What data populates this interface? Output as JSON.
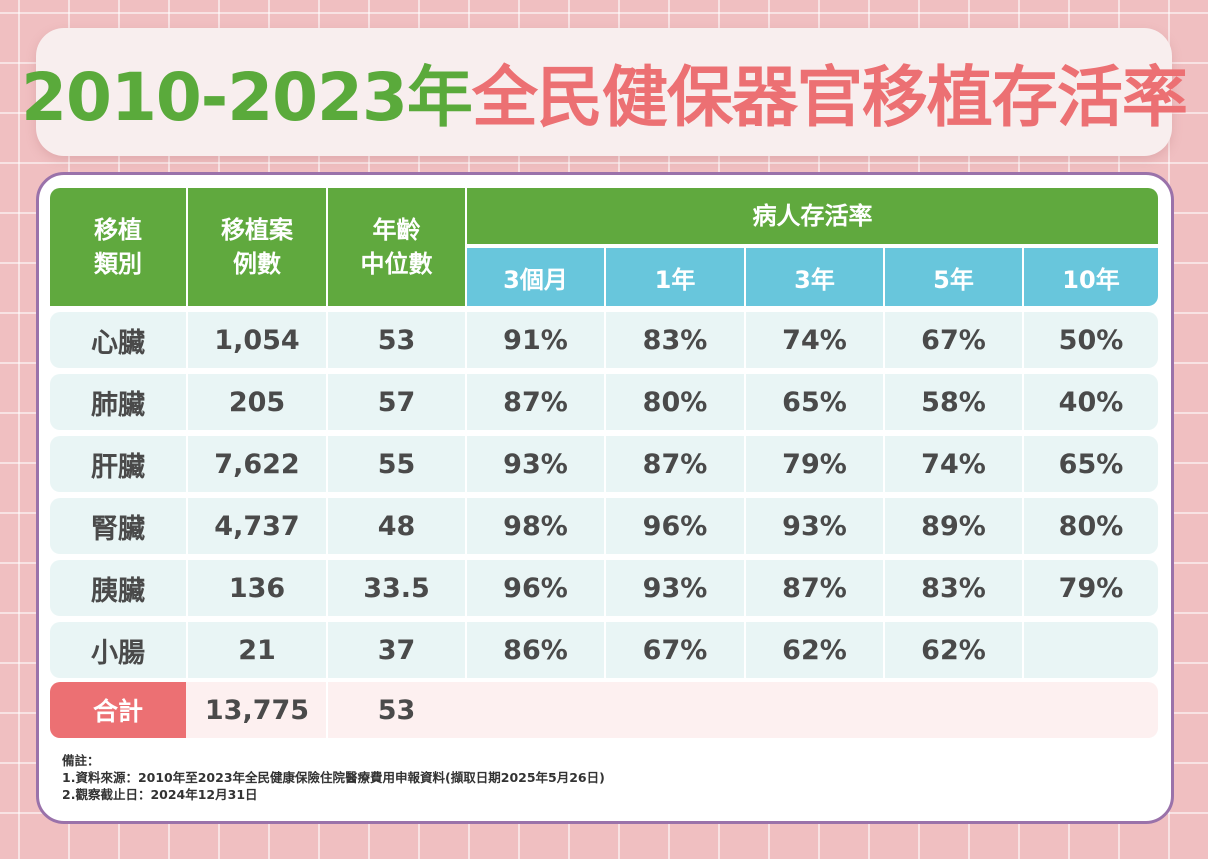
{
  "title": {
    "part1": "2010-2023年",
    "part2": "全民健保器官移植存活率"
  },
  "headers": {
    "type": "移植\n類別",
    "cases": "移植案\n例數",
    "age": "年齡\n中位數",
    "survival_group": "病人存活率",
    "periods": [
      "3個月",
      "1年",
      "3年",
      "5年",
      "10年"
    ]
  },
  "rows": [
    {
      "organ": "心臟",
      "cases": "1,054",
      "age": "53",
      "rates": [
        "91%",
        "83%",
        "74%",
        "67%",
        "50%"
      ]
    },
    {
      "organ": "肺臟",
      "cases": "205",
      "age": "57",
      "rates": [
        "87%",
        "80%",
        "65%",
        "58%",
        "40%"
      ]
    },
    {
      "organ": "肝臟",
      "cases": "7,622",
      "age": "55",
      "rates": [
        "93%",
        "87%",
        "79%",
        "74%",
        "65%"
      ]
    },
    {
      "organ": "腎臟",
      "cases": "4,737",
      "age": "48",
      "rates": [
        "98%",
        "96%",
        "93%",
        "89%",
        "80%"
      ]
    },
    {
      "organ": "胰臟",
      "cases": "136",
      "age": "33.5",
      "rates": [
        "96%",
        "93%",
        "87%",
        "83%",
        "79%"
      ]
    },
    {
      "organ": "小腸",
      "cases": "21",
      "age": "37",
      "rates": [
        "86%",
        "67%",
        "62%",
        "62%",
        ""
      ]
    }
  ],
  "total": {
    "label": "合計",
    "cases": "13,775",
    "age": "53"
  },
  "notes": [
    "備註：",
    "1.資料來源：2010年至2023年全民健康保險住院醫療費用申報資料(擷取日期2025年5月26日)",
    "2.觀察截止日：2024年12月31日"
  ],
  "colors": {
    "green": "#60a93e",
    "coral": "#ec7073",
    "teal": "#68c6dc",
    "purple": "#9a72aa",
    "row": "#e9f5f5"
  }
}
